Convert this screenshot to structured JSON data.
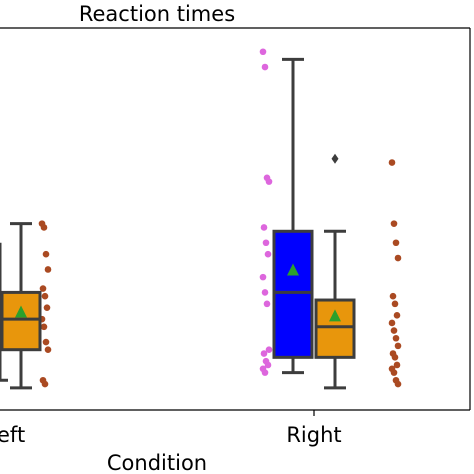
{
  "chart_data": {
    "type": "box",
    "title": "Reaction times",
    "xlabel": "Condition",
    "ylabel": "",
    "categories": [
      "Left",
      "Right"
    ],
    "visible_category_labels": [
      "eft",
      "Right"
    ],
    "ylim": [
      0,
      100
    ],
    "grid": false,
    "legend": "none",
    "boxes": [
      {
        "category": "Left",
        "color": "#0000ff",
        "q1": 0,
        "median": 0,
        "q3": 0,
        "whisker_low": 0,
        "whisker_high": 0,
        "mean": 0,
        "visible": false
      },
      {
        "category": "Left",
        "color": "#e8960c",
        "q1": 15,
        "median": 23,
        "q3": 30,
        "whisker_low": 5,
        "whisker_high": 48,
        "mean": 25,
        "visible": true
      },
      {
        "category": "Right",
        "color": "#0000ff",
        "q1": 13,
        "median": 30,
        "q3": 46,
        "whisker_low": 9,
        "whisker_high": 91,
        "mean": 36,
        "visible": true
      },
      {
        "category": "Right",
        "color": "#e8960c",
        "q1": 13,
        "median": 21,
        "q3": 28,
        "whisker_low": 5,
        "whisker_high": 46,
        "mean": 24,
        "visible": true,
        "outliers": [
          65
        ]
      }
    ],
    "left_partial_box": {
      "top": 43,
      "whisker_low": 7
    },
    "strip_points": [
      {
        "category": "Right",
        "color": "#dd66dd",
        "offset": -48,
        "values": [
          93,
          89,
          60,
          59,
          47,
          43,
          40,
          34,
          30,
          27,
          15,
          14,
          12,
          11,
          10,
          9
        ]
      },
      {
        "category": "Left",
        "color": "#aa4a22",
        "offset": 45,
        "values": [
          48,
          47,
          40,
          36,
          31,
          29,
          26,
          23,
          21,
          17,
          15,
          7,
          6
        ]
      },
      {
        "category": "Right",
        "color": "#aa4a22",
        "offset": 81,
        "values": [
          64,
          48,
          43,
          39,
          29,
          27,
          24,
          22,
          20,
          18,
          16,
          14,
          13,
          11,
          10,
          9,
          7,
          6
        ]
      }
    ],
    "marker_colors": {
      "mean": "#2ca02c",
      "outline": "#3d3d3d",
      "outlier": "#3d3d3d"
    }
  }
}
